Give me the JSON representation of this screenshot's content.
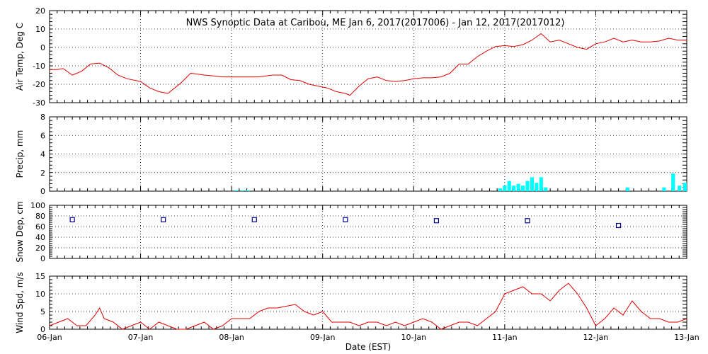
{
  "title": "NWS Synoptic Data at Caribou, ME   Jan  6, 2017(2017006) - Jan 12, 2017(2017012)",
  "xlabel": "Date (EST)",
  "x_ticks": [
    "06-Jan",
    "07-Jan",
    "08-Jan",
    "09-Jan",
    "10-Jan",
    "11-Jan",
    "12-Jan",
    "13-Jan"
  ],
  "colors": {
    "line": "#e00000",
    "bar": "#00ffff",
    "marker": "#00008b",
    "axis": "#000000"
  },
  "chart_data": [
    {
      "type": "line",
      "name": "air_temp",
      "ylabel": "Air Temp, Deg C",
      "ylim": [
        -30,
        20
      ],
      "yticks": [
        -30,
        -20,
        -10,
        0,
        10,
        20
      ],
      "x_unit": "days since 06-Jan 00:00 EST",
      "grid": true,
      "x": [
        0,
        0.08,
        0.15,
        0.25,
        0.35,
        0.45,
        0.55,
        0.65,
        0.75,
        0.85,
        1.0,
        1.1,
        1.2,
        1.3,
        1.45,
        1.55,
        1.7,
        1.8,
        1.9,
        2.0,
        2.1,
        2.2,
        2.3,
        2.45,
        2.55,
        2.65,
        2.75,
        2.85,
        2.95,
        3.05,
        3.15,
        3.25,
        3.3,
        3.4,
        3.5,
        3.6,
        3.7,
        3.8,
        3.9,
        4.0,
        4.1,
        4.2,
        4.3,
        4.4,
        4.5,
        4.6,
        4.7,
        4.8,
        4.9,
        5.0,
        5.1,
        5.2,
        5.3,
        5.4,
        5.5,
        5.6,
        5.7,
        5.8,
        5.9,
        6.0,
        6.1,
        6.2,
        6.3,
        6.4,
        6.5,
        6.6,
        6.7,
        6.8,
        6.9,
        7.0
      ],
      "y": [
        -12,
        -12,
        -11.5,
        -15,
        -13,
        -9,
        -8.5,
        -11,
        -15,
        -17,
        -18.5,
        -22,
        -24,
        -25,
        -19,
        -14,
        -15,
        -15.5,
        -16,
        -16,
        -16,
        -16,
        -16,
        -15,
        -15,
        -17.5,
        -18,
        -20,
        -21,
        -22,
        -24,
        -25,
        -26,
        -21,
        -17,
        -16,
        -18,
        -18.5,
        -18,
        -17,
        -16.5,
        -16.5,
        -16,
        -14,
        -9,
        -9,
        -5,
        -2,
        0.5,
        1,
        0.5,
        1.5,
        4,
        7.5,
        3,
        4,
        2,
        0,
        -1,
        2,
        3,
        5,
        3,
        4,
        3,
        3,
        3.5,
        5,
        4,
        4
      ]
    },
    {
      "type": "bar",
      "name": "precip",
      "ylabel": "Precip, mm",
      "ylim": [
        0,
        8
      ],
      "yticks": [
        0,
        2,
        4,
        6,
        8
      ],
      "x_unit": "days since 06-Jan 00:00 EST",
      "grid": true,
      "x": [
        2.05,
        2.12,
        2.18,
        4.95,
        5.0,
        5.05,
        5.1,
        5.15,
        5.2,
        5.25,
        5.3,
        5.35,
        5.4,
        5.45,
        6.35,
        6.75,
        6.85,
        6.92,
        6.98
      ],
      "values": [
        0.1,
        0.1,
        0.1,
        0.3,
        0.6,
        1.1,
        0.6,
        0.8,
        0.6,
        1.1,
        1.5,
        0.9,
        1.5,
        0.4,
        0.4,
        0.4,
        1.9,
        0.6,
        0.9
      ],
      "bar_width_days": 0.04
    },
    {
      "type": "scatter",
      "name": "snow_depth",
      "ylabel": "Snow Dep, cm",
      "ylim": [
        0,
        100
      ],
      "yticks": [
        0,
        20,
        40,
        60,
        80,
        100
      ],
      "x_unit": "days since 06-Jan 00:00 EST",
      "grid": true,
      "x": [
        0.25,
        1.25,
        2.25,
        3.25,
        4.25,
        5.25,
        6.25
      ],
      "y": [
        73,
        73,
        73,
        73,
        71,
        71,
        62
      ]
    },
    {
      "type": "line",
      "name": "wind_speed",
      "ylabel": "Wind Spd, m/s",
      "ylim": [
        0,
        15
      ],
      "yticks": [
        0,
        5,
        10,
        15
      ],
      "x_unit": "days since 06-Jan 00:00 EST",
      "grid": true,
      "x": [
        0,
        0.1,
        0.2,
        0.3,
        0.4,
        0.5,
        0.55,
        0.6,
        0.7,
        0.8,
        0.9,
        1.0,
        1.1,
        1.2,
        1.3,
        1.4,
        1.5,
        1.6,
        1.7,
        1.8,
        1.9,
        2.0,
        2.1,
        2.2,
        2.3,
        2.4,
        2.5,
        2.6,
        2.7,
        2.8,
        2.9,
        3.0,
        3.1,
        3.2,
        3.3,
        3.4,
        3.5,
        3.6,
        3.7,
        3.8,
        3.9,
        4.0,
        4.1,
        4.2,
        4.3,
        4.4,
        4.5,
        4.6,
        4.7,
        4.8,
        4.9,
        5.0,
        5.1,
        5.2,
        5.3,
        5.4,
        5.5,
        5.6,
        5.7,
        5.8,
        5.9,
        6.0,
        6.1,
        6.2,
        6.3,
        6.4,
        6.5,
        6.6,
        6.7,
        6.8,
        6.9,
        7.0
      ],
      "y": [
        1,
        2,
        3,
        1,
        1,
        4,
        6,
        3,
        2,
        0,
        1,
        2,
        0,
        2,
        1,
        0,
        0,
        1,
        2,
        0,
        1,
        3,
        3,
        3,
        5,
        6,
        6,
        6.5,
        7,
        5,
        4,
        5,
        2,
        2,
        2,
        1,
        2,
        2,
        1,
        2,
        1,
        2,
        3,
        2,
        0,
        1,
        2,
        2,
        1,
        3,
        5,
        10,
        11,
        12,
        10,
        10,
        8,
        11,
        13,
        10,
        6,
        1,
        3,
        6,
        4,
        8,
        5,
        3,
        3,
        2,
        2,
        3
      ]
    }
  ]
}
